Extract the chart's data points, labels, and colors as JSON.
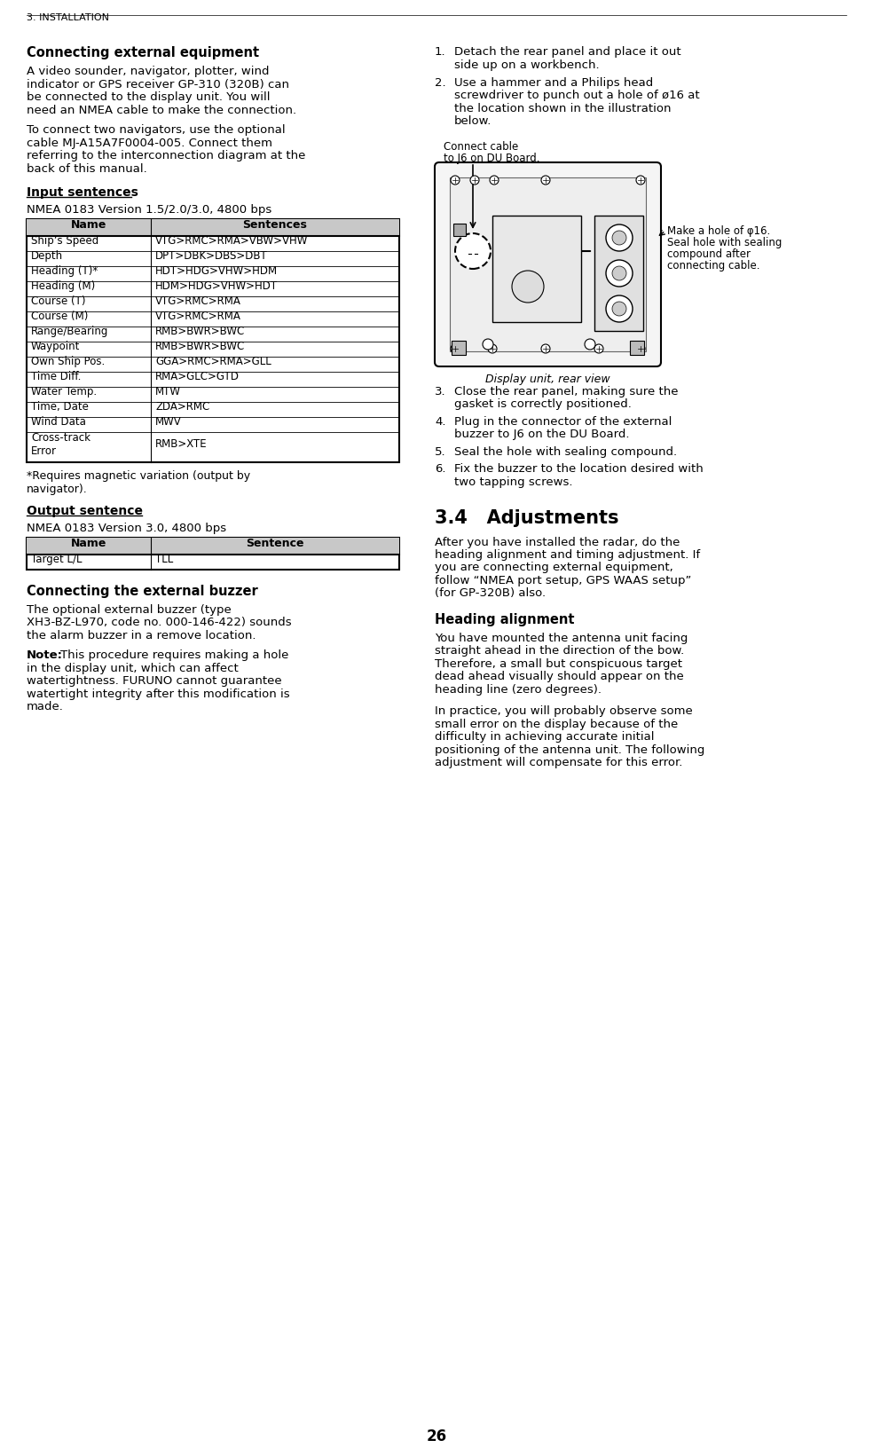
{
  "page_header": "3. INSTALLATION",
  "background_color": "#ffffff",
  "page_number": "26",
  "section1_heading": "Connecting external equipment",
  "section1_para1_lines": [
    "A video sounder, navigator, plotter, wind",
    "indicator or GPS receiver GP-310 (320B) can",
    "be connected to the display unit. You will",
    "need an NMEA cable to make the connection."
  ],
  "section1_para2_lines": [
    "To connect two navigators, use the optional",
    "cable MJ-A15A7F0004-005. Connect them",
    "referring to the interconnection diagram at the",
    "back of this manual."
  ],
  "input_sentences_heading": "Input sentences",
  "input_sentences_subtitle": "NMEA 0183 Version 1.5/2.0/3.0, 4800 bps",
  "input_table_headers": [
    "Name",
    "Sentences"
  ],
  "input_table_rows": [
    [
      "Ship’s Speed",
      "VTG>RMC>RMA>VBW>VHW"
    ],
    [
      "Depth",
      "DPT>DBK>DBS>DBT"
    ],
    [
      "Heading (T)*",
      "HDT>HDG>VHW>HDM"
    ],
    [
      "Heading (M)",
      "HDM>HDG>VHW>HDT"
    ],
    [
      "Course (T)",
      "VTG>RMC>RMA"
    ],
    [
      "Course (M)",
      "VTG>RMC>RMA"
    ],
    [
      "Range/Bearing",
      "RMB>BWR>BWC"
    ],
    [
      "Waypoint",
      "RMB>BWR>BWC"
    ],
    [
      "Own Ship Pos.",
      "GGA>RMC>RMA>GLL"
    ],
    [
      "Time Diff.",
      "RMA>GLC>GTD"
    ],
    [
      "Water Temp.",
      "MTW"
    ],
    [
      "Time, Date",
      "ZDA>RMC"
    ],
    [
      "Wind Data",
      "MWV"
    ],
    [
      "Cross-track\nError",
      "RMB>XTE"
    ]
  ],
  "footnote_lines": [
    "*Requires magnetic variation (output by",
    "navigator)."
  ],
  "output_sentence_heading": "Output sentence",
  "output_sentence_subtitle": "NMEA 0183 Version 3.0, 4800 bps",
  "output_table_headers": [
    "Name",
    "Sentence"
  ],
  "output_table_rows": [
    [
      "Target L/L",
      "TLL"
    ]
  ],
  "buzzer_heading": "Connecting the external buzzer",
  "buzzer_para1_lines": [
    "The optional external buzzer (type",
    "XH3-BZ-L970, code no. 000-146-422) sounds",
    "the alarm buzzer in a remove location."
  ],
  "buzzer_note_lines": [
    "Note: This procedure requires making a hole",
    "in the display unit, which can affect",
    "watertightness. FURUNO cannot guarantee",
    "watertight integrity after this modification is",
    "made."
  ],
  "step1_lines": [
    "Detach the rear panel and place it out",
    "side up on a workbench."
  ],
  "step2_lines": [
    "Use a hammer and a Philips head",
    "screwdriver to punch out a hole of ø16 at",
    "the location shown in the illustration",
    "below."
  ],
  "step3_lines": [
    "Close the rear panel, making sure the",
    "gasket is correctly positioned."
  ],
  "step4_lines": [
    "Plug in the connector of the external",
    "buzzer to J6 on the DU Board."
  ],
  "step5_lines": [
    "Seal the hole with sealing compound."
  ],
  "step6_lines": [
    "Fix the buzzer to the location desired with",
    "two tapping screws."
  ],
  "diagram_annotation1_lines": [
    "Connect cable",
    "to J6 on DU Board."
  ],
  "diagram_annotation2_lines": [
    "Make a hole of φ16.",
    "Seal hole with sealing",
    "compound after",
    "connecting cable."
  ],
  "diagram_caption": "Display unit, rear view",
  "section34_heading": "3.4   Adjustments",
  "section34_para_lines": [
    "After you have installed the radar, do the",
    "heading alignment and timing adjustment. If",
    "you are connecting external equipment,",
    "follow “NMEA port setup, GPS WAAS setup”",
    "(for GP-320B) also."
  ],
  "heading_align_heading": "Heading alignment",
  "heading_align_para1_lines": [
    "You have mounted the antenna unit facing",
    "straight ahead in the direction of the bow.",
    "Therefore, a small but conspicuous target",
    "dead ahead visually should appear on the",
    "heading line (zero degrees)."
  ],
  "heading_align_para2_lines": [
    "In practice, you will probably observe some",
    "small error on the display because of the",
    "difficulty in achieving accurate initial",
    "positioning of the antenna unit. The following",
    "adjustment will compensate for this error."
  ]
}
